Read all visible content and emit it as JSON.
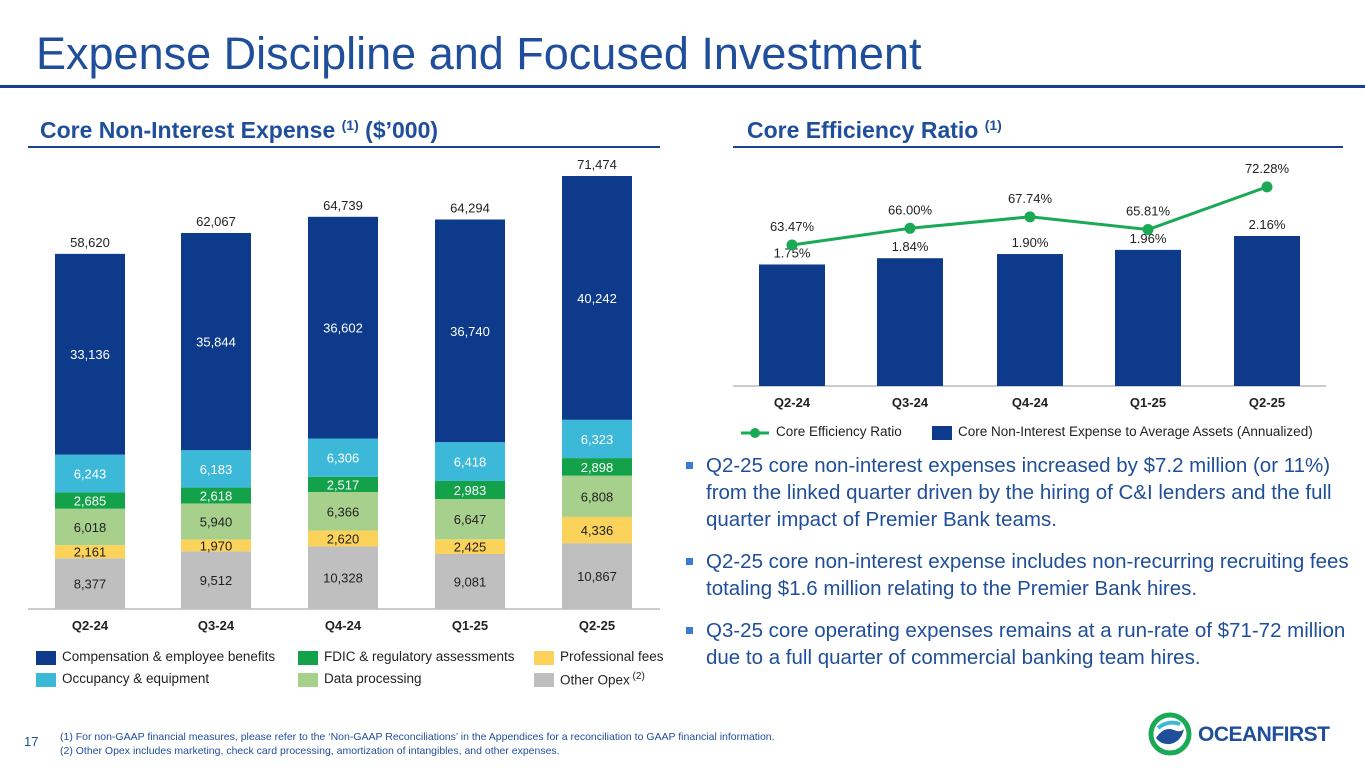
{
  "page": {
    "title": "Expense Discipline and Focused Investment",
    "page_number": "17"
  },
  "left_section": {
    "title": "Core Non-Interest Expense",
    "sup": "(1)",
    "suffix": "($’000)"
  },
  "right_section": {
    "title": "Core Efficiency Ratio",
    "sup": "(1)"
  },
  "colors": {
    "comp": "#0d3a8a",
    "occupancy": "#3cb8d8",
    "fdic": "#13a14a",
    "data": "#a8d08d",
    "prof": "#fbd35a",
    "other": "#bfbfbf",
    "line": "#1aaa55",
    "bar": "#0d3a8a"
  },
  "chart_data": [
    {
      "type": "bar",
      "stacked": true,
      "title": "Core Non-Interest Expense (1) ($’000)",
      "categories": [
        "Q2-24",
        "Q3-24",
        "Q4-24",
        "Q1-25",
        "Q2-25"
      ],
      "series": [
        {
          "name": "Other Opex",
          "key": "other",
          "values": [
            8377,
            9512,
            10328,
            9081,
            10867
          ],
          "labels": [
            "8,377",
            "9,512",
            "10,328",
            "9,081",
            "10,867"
          ]
        },
        {
          "name": "Professional fees",
          "key": "prof",
          "values": [
            2161,
            1970,
            2620,
            2425,
            4336
          ],
          "labels": [
            "2,161",
            "1,970",
            "2,620",
            "2,425",
            "4,336"
          ]
        },
        {
          "name": "Data processing",
          "key": "data",
          "values": [
            6018,
            5940,
            6366,
            6647,
            6808
          ],
          "labels": [
            "6,018",
            "5,940",
            "6,366",
            "6,647",
            "6,808"
          ]
        },
        {
          "name": "FDIC & regulatory assessments",
          "key": "fdic",
          "values": [
            2685,
            2618,
            2517,
            2983,
            2898
          ],
          "labels": [
            "2,685",
            "2,618",
            "2,517",
            "2,983",
            "2,898"
          ]
        },
        {
          "name": "Occupancy & equipment",
          "key": "occupancy",
          "values": [
            6243,
            6183,
            6306,
            6418,
            6323
          ],
          "labels": [
            "6,243",
            "6,183",
            "6,306",
            "6,418",
            "6,323"
          ]
        },
        {
          "name": "Compensation & employee benefits",
          "key": "comp",
          "values": [
            33136,
            35844,
            36602,
            36740,
            40242
          ],
          "labels": [
            "33,136",
            "35,844",
            "36,602",
            "36,740",
            "40,242"
          ]
        }
      ],
      "totals": [
        58620,
        62067,
        64739,
        64294,
        71474
      ],
      "total_labels": [
        "58,620",
        "62,067",
        "64,739",
        "64,294",
        "71,474"
      ],
      "legend": [
        {
          "key": "comp",
          "label": "Compensation & employee benefits",
          "note": ""
        },
        {
          "key": "fdic",
          "label": "FDIC & regulatory assessments",
          "note": ""
        },
        {
          "key": "prof",
          "label": "Professional fees",
          "note": ""
        },
        {
          "key": "occupancy",
          "label": "Occupancy & equipment",
          "note": ""
        },
        {
          "key": "data",
          "label": "Data processing",
          "note": ""
        },
        {
          "key": "other",
          "label": "Other Opex",
          "note": "(2)"
        }
      ]
    },
    {
      "type": "bar+line",
      "title": "Core Efficiency Ratio (1)",
      "categories": [
        "Q2-24",
        "Q3-24",
        "Q4-24",
        "Q1-25",
        "Q2-25"
      ],
      "bars": {
        "name": "Core Non-Interest Expense to Average Assets (Annualized)",
        "values": [
          1.75,
          1.84,
          1.9,
          1.96,
          2.16
        ],
        "labels": [
          "1.75%",
          "1.84%",
          "1.90%",
          "1.96%",
          "2.16%"
        ]
      },
      "line": {
        "name": "Core Efficiency Ratio",
        "values": [
          63.47,
          66.0,
          67.74,
          65.81,
          72.28
        ],
        "labels": [
          "63.47%",
          "66.00%",
          "67.74%",
          "65.81%",
          "72.28%"
        ]
      }
    }
  ],
  "bullets": [
    "Q2-25 core non-interest expenses increased by $7.2 million (or 11%) from the linked quarter driven by the hiring of C&I lenders and the full quarter impact of Premier Bank teams.",
    "Q2-25 core non-interest expense includes non-recurring recruiting fees totaling $1.6 million relating to the Premier Bank hires.",
    "Q3-25 core operating expenses remains at a run-rate of $71-72 million due to a full quarter of commercial banking team hires."
  ],
  "footnotes": [
    "(1) For non-GAAP financial measures, please refer to the ‘Non-GAAP Reconciliations’ in the Appendices for a reconciliation to GAAP financial information.",
    "(2) Other Opex includes marketing, check card processing, amortization of intangibles, and other expenses."
  ],
  "logo": {
    "text": "OCEANFIRST",
    "name": "OceanFirst logo"
  }
}
